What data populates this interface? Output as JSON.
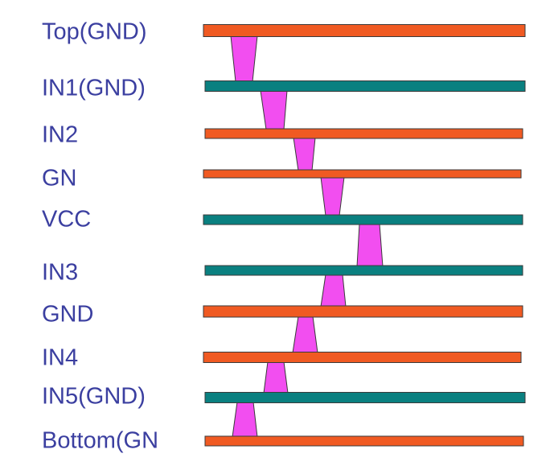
{
  "colors": {
    "signal_layer": "#f05a22",
    "plane_layer": "#0a8080",
    "via": "#f24ef0",
    "label": "#3b3fa0",
    "outline": "#3a3a3a"
  },
  "layers": [
    {
      "label": "Top(GND)",
      "kind": "signal"
    },
    {
      "label": "IN1(GND)",
      "kind": "plane"
    },
    {
      "label": "IN2",
      "kind": "signal"
    },
    {
      "label": "GN",
      "kind": "signal"
    },
    {
      "label": "VCC",
      "kind": "plane"
    },
    {
      "label": "IN3",
      "kind": "plane"
    },
    {
      "label": "GND",
      "kind": "signal"
    },
    {
      "label": "IN4",
      "kind": "signal"
    },
    {
      "label": "IN5(GND)",
      "kind": "plane"
    },
    {
      "label": "Bottom(GN",
      "kind": "signal"
    }
  ],
  "vias": [
    {
      "from_layer": 1,
      "to_layer": 2
    },
    {
      "from_layer": 2,
      "to_layer": 3
    },
    {
      "from_layer": 3,
      "to_layer": 4
    },
    {
      "from_layer": 4,
      "to_layer": 5
    },
    {
      "from_layer": 5,
      "to_layer": 6
    },
    {
      "from_layer": 6,
      "to_layer": 7
    },
    {
      "from_layer": 7,
      "to_layer": 8
    },
    {
      "from_layer": 8,
      "to_layer": 9
    },
    {
      "from_layer": 9,
      "to_layer": 10
    }
  ]
}
